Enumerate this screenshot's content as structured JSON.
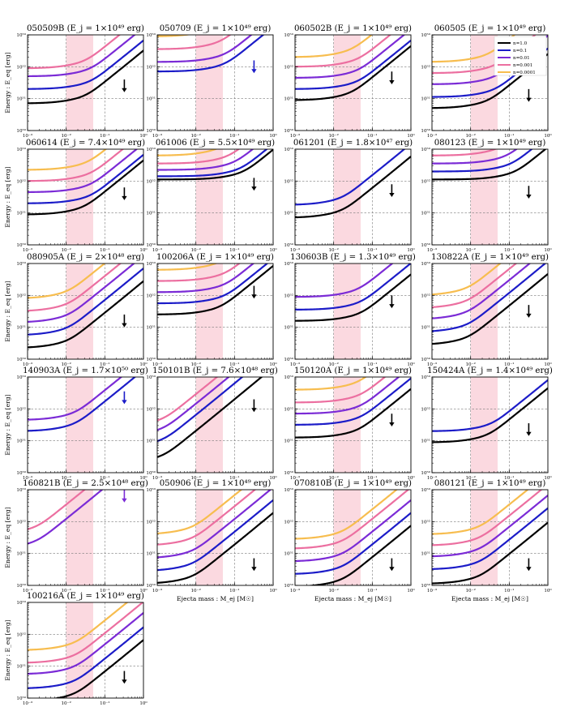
{
  "figure": {
    "xlabel": "Ejecta mass : M_ej [M☉]",
    "ylabel": "Energy : E_eq [erg]",
    "xlim_log10": [
      -3,
      0
    ],
    "ylim_log10": [
      50,
      53
    ],
    "x_ticks": [
      "10⁻³",
      "10⁻²",
      "10⁻¹",
      "10⁰"
    ],
    "y_ticks": [
      "10⁵⁰",
      "10⁵¹",
      "10⁵²",
      "10⁵³"
    ],
    "shaded_region_Msun": [
      0.01,
      0.05
    ],
    "shaded_color": "#fbd9e0",
    "grid": "dashed",
    "legend": {
      "location": "top-right of panel 060505",
      "entries": [
        {
          "label": "n=1.0",
          "color": "#000000"
        },
        {
          "label": "n=0.1",
          "color": "#1c1cc8"
        },
        {
          "label": "n=0.01",
          "color": "#7b2bd6"
        },
        {
          "label": "n=0.001",
          "color": "#ec6fa0"
        },
        {
          "label": "n=0.0001",
          "color": "#f7bd4f"
        }
      ]
    }
  },
  "chart_data": [
    {
      "type": "line",
      "title": "050509B (E_j = 1×10⁴⁹ erg)",
      "name": "050509B",
      "ej": "1×10⁴⁹",
      "show_ylabel": true,
      "show_xlabel": false,
      "arrow": {
        "color": "#000000",
        "x_Msun": 0.32,
        "from_log10E": 51.6,
        "to_log10E": 51.2
      },
      "series": [
        {
          "n": "1.0",
          "log10E_floor": 50.85,
          "knee_Msun": 0.022
        },
        {
          "n": "0.1",
          "log10E_floor": 51.3,
          "knee_Msun": 0.03
        },
        {
          "n": "0.01",
          "log10E_floor": 51.7,
          "knee_Msun": 0.03
        },
        {
          "n": "0.001",
          "log10E_floor": 51.95,
          "knee_Msun": 0.022
        }
      ]
    },
    {
      "type": "line",
      "title": "050709 (E_j = 1×10⁴⁹ erg)",
      "name": "050709",
      "ej": "1×10⁴⁹",
      "show_ylabel": false,
      "show_xlabel": false,
      "arrow": {
        "color": "#1c1cc8",
        "x_Msun": 0.32,
        "from_log10E": 52.2,
        "to_log10E": 51.8
      },
      "series": [
        {
          "n": "0.1",
          "log10E_floor": 51.85,
          "knee_Msun": 0.04
        },
        {
          "n": "0.01",
          "log10E_floor": 52.15,
          "knee_Msun": 0.04
        },
        {
          "n": "0.001",
          "log10E_floor": 52.55,
          "knee_Msun": 0.03
        },
        {
          "n": "0.0001",
          "log10E_floor": 52.95,
          "knee_Msun": 0.02
        }
      ]
    },
    {
      "type": "line",
      "title": "060502B (E_j = 1×10⁴⁹ erg)",
      "name": "060502B",
      "ej": "1×10⁴⁹",
      "show_ylabel": false,
      "show_xlabel": false,
      "arrow": {
        "color": "#000000",
        "x_Msun": 0.32,
        "from_log10E": 51.85,
        "to_log10E": 51.45
      },
      "series": [
        {
          "n": "1.0",
          "log10E_floor": 50.95,
          "knee_Msun": 0.02
        },
        {
          "n": "0.1",
          "log10E_floor": 51.3,
          "knee_Msun": 0.03
        },
        {
          "n": "0.01",
          "log10E_floor": 51.65,
          "knee_Msun": 0.03
        },
        {
          "n": "0.001",
          "log10E_floor": 52.0,
          "knee_Msun": 0.03
        },
        {
          "n": "0.0001",
          "log10E_floor": 52.3,
          "knee_Msun": 0.02
        }
      ]
    },
    {
      "type": "line",
      "title": "060505 (E_j = 1×10⁴⁹ erg)",
      "name": "060505",
      "ej": "1×10⁴⁹",
      "show_ylabel": false,
      "show_xlabel": false,
      "legend": true,
      "arrow": {
        "color": "#000000",
        "x_Msun": 0.32,
        "from_log10E": 51.3,
        "to_log10E": 50.9
      },
      "series": [
        {
          "n": "1.0",
          "log10E_floor": 50.7,
          "knee_Msun": 0.02
        },
        {
          "n": "0.1",
          "log10E_floor": 51.05,
          "knee_Msun": 0.03
        },
        {
          "n": "0.01",
          "log10E_floor": 51.45,
          "knee_Msun": 0.03
        },
        {
          "n": "0.001",
          "log10E_floor": 51.8,
          "knee_Msun": 0.03
        },
        {
          "n": "0.0001",
          "log10E_floor": 52.15,
          "knee_Msun": 0.02
        }
      ]
    },
    {
      "type": "line",
      "title": "060614 (E_j = 7.4×10⁴⁹ erg)",
      "name": "060614",
      "ej": "7.4×10⁴⁹",
      "show_ylabel": true,
      "show_xlabel": false,
      "arrow": {
        "color": "#000000",
        "x_Msun": 0.32,
        "from_log10E": 51.8,
        "to_log10E": 51.4
      },
      "series": [
        {
          "n": "1.0",
          "log10E_floor": 50.95,
          "knee_Msun": 0.02
        },
        {
          "n": "0.1",
          "log10E_floor": 51.3,
          "knee_Msun": 0.03
        },
        {
          "n": "0.01",
          "log10E_floor": 51.65,
          "knee_Msun": 0.03
        },
        {
          "n": "0.001",
          "log10E_floor": 52.0,
          "knee_Msun": 0.03
        },
        {
          "n": "0.0001",
          "log10E_floor": 52.35,
          "knee_Msun": 0.025
        }
      ]
    },
    {
      "type": "line",
      "title": "061006 (E_j = 5.5×10⁴⁹ erg)",
      "name": "061006",
      "ej": "5.5×10⁴⁹",
      "show_ylabel": false,
      "show_xlabel": false,
      "arrow": {
        "color": "#000000",
        "x_Msun": 0.32,
        "from_log10E": 52.1,
        "to_log10E": 51.7
      },
      "series": [
        {
          "n": "1.0",
          "log10E_floor": 52.05,
          "knee_Msun": 0.12
        },
        {
          "n": "0.1",
          "log10E_floor": 52.15,
          "knee_Msun": 0.1
        },
        {
          "n": "0.01",
          "log10E_floor": 52.35,
          "knee_Msun": 0.07
        },
        {
          "n": "0.001",
          "log10E_floor": 52.55,
          "knee_Msun": 0.05
        },
        {
          "n": "0.0001",
          "log10E_floor": 52.8,
          "knee_Msun": 0.03
        }
      ]
    },
    {
      "type": "line",
      "title": "061201 (E_j = 1.8×10⁴⁷ erg)",
      "name": "061201",
      "ej": "1.8×10⁴⁷",
      "show_ylabel": false,
      "show_xlabel": false,
      "arrow": {
        "color": "#000000",
        "x_Msun": 0.32,
        "from_log10E": 51.9,
        "to_log10E": 51.5
      },
      "series": [
        {
          "n": "1.0",
          "log10E_floor": 50.85,
          "knee_Msun": 0.012
        },
        {
          "n": "0.1",
          "log10E_floor": 51.25,
          "knee_Msun": 0.012
        }
      ]
    },
    {
      "type": "line",
      "title": "080123 (E_j = 1×10⁴⁹ erg)",
      "name": "080123",
      "ej": "1×10⁴⁹",
      "show_ylabel": false,
      "show_xlabel": false,
      "arrow": {
        "color": "#000000",
        "x_Msun": 0.32,
        "from_log10E": 51.85,
        "to_log10E": 51.45
      },
      "series": [
        {
          "n": "1.0",
          "log10E_floor": 52.05,
          "knee_Msun": 0.1
        },
        {
          "n": "0.1",
          "log10E_floor": 52.3,
          "knee_Msun": 0.08
        },
        {
          "n": "0.01",
          "log10E_floor": 52.55,
          "knee_Msun": 0.06
        },
        {
          "n": "0.001",
          "log10E_floor": 52.8,
          "knee_Msun": 0.04
        },
        {
          "n": "0.0001",
          "log10E_floor": 53.05,
          "knee_Msun": 0.03
        }
      ]
    },
    {
      "type": "line",
      "title": "080905A (E_j = 2×10⁴⁸ erg)",
      "name": "080905A",
      "ej": "2×10⁴⁸",
      "show_ylabel": true,
      "show_xlabel": false,
      "arrow": {
        "color": "#000000",
        "x_Msun": 0.32,
        "from_log10E": 51.4,
        "to_log10E": 51.0
      },
      "series": [
        {
          "n": "1.0",
          "log10E_floor": 50.35,
          "knee_Msun": 0.008
        },
        {
          "n": "0.1",
          "log10E_floor": 50.75,
          "knee_Msun": 0.008
        },
        {
          "n": "0.01",
          "log10E_floor": 51.15,
          "knee_Msun": 0.008
        },
        {
          "n": "0.001",
          "log10E_floor": 51.5,
          "knee_Msun": 0.008
        },
        {
          "n": "0.0001",
          "log10E_floor": 51.9,
          "knee_Msun": 0.008
        }
      ]
    },
    {
      "type": "line",
      "title": "100206A (E_j = 1×10⁴⁹ erg)",
      "name": "100206A",
      "ej": "1×10⁴⁹",
      "show_ylabel": false,
      "show_xlabel": false,
      "arrow": {
        "color": "#000000",
        "x_Msun": 0.32,
        "from_log10E": 52.3,
        "to_log10E": 51.9
      },
      "series": [
        {
          "n": "1.0",
          "log10E_floor": 51.4,
          "knee_Msun": 0.03
        },
        {
          "n": "0.1",
          "log10E_floor": 51.75,
          "knee_Msun": 0.04
        },
        {
          "n": "0.01",
          "log10E_floor": 52.1,
          "knee_Msun": 0.04
        },
        {
          "n": "0.001",
          "log10E_floor": 52.45,
          "knee_Msun": 0.04
        },
        {
          "n": "0.0001",
          "log10E_floor": 52.8,
          "knee_Msun": 0.03
        }
      ]
    },
    {
      "type": "line",
      "title": "130603B (E_j = 1.3×10⁴⁹ erg)",
      "name": "130603B",
      "ej": "1.3×10⁴⁹",
      "show_ylabel": false,
      "show_xlabel": false,
      "arrow": {
        "color": "#000000",
        "x_Msun": 0.32,
        "from_log10E": 52.0,
        "to_log10E": 51.6
      },
      "series": [
        {
          "n": "1.0",
          "log10E_floor": 51.2,
          "knee_Msun": 0.035
        },
        {
          "n": "0.1",
          "log10E_floor": 51.55,
          "knee_Msun": 0.035
        },
        {
          "n": "0.01",
          "log10E_floor": 51.95,
          "knee_Msun": 0.03
        }
      ]
    },
    {
      "type": "line",
      "title": "130822A (E_j = 1×10⁴⁹ erg)",
      "name": "130822A",
      "ej": "1×10⁴⁹",
      "show_ylabel": false,
      "show_xlabel": false,
      "arrow": {
        "color": "#000000",
        "x_Msun": 0.32,
        "from_log10E": 51.7,
        "to_log10E": 51.3
      },
      "series": [
        {
          "n": "1.0",
          "log10E_floor": 50.45,
          "knee_Msun": 0.006
        },
        {
          "n": "0.1",
          "log10E_floor": 50.85,
          "knee_Msun": 0.006
        },
        {
          "n": "0.01",
          "log10E_floor": 51.25,
          "knee_Msun": 0.006
        },
        {
          "n": "0.001",
          "log10E_floor": 51.6,
          "knee_Msun": 0.006
        },
        {
          "n": "0.0001",
          "log10E_floor": 52.0,
          "knee_Msun": 0.006
        }
      ]
    },
    {
      "type": "line",
      "title": "140903A (E_j = 1.7×10⁵⁰ erg)",
      "name": "140903A",
      "ej": "1.7×10⁵⁰",
      "show_ylabel": true,
      "show_xlabel": false,
      "arrow": {
        "color": "#1c1cc8",
        "x_Msun": 0.32,
        "from_log10E": 52.55,
        "to_log10E": 52.15
      },
      "series": [
        {
          "n": "0.1",
          "log10E_floor": 51.3,
          "knee_Msun": 0.012
        },
        {
          "n": "0.01",
          "log10E_floor": 51.65,
          "knee_Msun": 0.012
        }
      ]
    },
    {
      "type": "line",
      "title": "150101B (E_j = 7.6×10⁴⁸ erg)",
      "name": "150101B",
      "ej": "7.6×10⁴⁸",
      "show_ylabel": false,
      "show_xlabel": false,
      "arrow": {
        "color": "#000000",
        "x_Msun": 0.32,
        "from_log10E": 52.3,
        "to_log10E": 51.9
      },
      "series": [
        {
          "n": "1.0",
          "log10E_floor": 50.3,
          "knee_Msun": 0.001
        },
        {
          "n": "0.1",
          "log10E_floor": 50.8,
          "knee_Msun": 0.001
        },
        {
          "n": "0.01",
          "log10E_floor": 51.15,
          "knee_Msun": 0.001
        },
        {
          "n": "0.001",
          "log10E_floor": 51.45,
          "knee_Msun": 0.001
        }
      ]
    },
    {
      "type": "line",
      "title": "150120A (E_j = 1×10⁴⁹ erg)",
      "name": "150120A",
      "ej": "1×10⁴⁹",
      "show_ylabel": false,
      "show_xlabel": false,
      "arrow": {
        "color": "#000000",
        "x_Msun": 0.32,
        "from_log10E": 51.85,
        "to_log10E": 51.45
      },
      "series": [
        {
          "n": "1.0",
          "log10E_floor": 51.1,
          "knee_Msun": 0.03
        },
        {
          "n": "0.1",
          "log10E_floor": 51.5,
          "knee_Msun": 0.035
        },
        {
          "n": "0.01",
          "log10E_floor": 51.85,
          "knee_Msun": 0.035
        },
        {
          "n": "0.001",
          "log10E_floor": 52.2,
          "knee_Msun": 0.035
        },
        {
          "n": "0.0001",
          "log10E_floor": 52.6,
          "knee_Msun": 0.03
        }
      ]
    },
    {
      "type": "line",
      "title": "150424A (E_j = 1.4×10⁴⁹ erg)",
      "name": "150424A",
      "ej": "1.4×10⁴⁹",
      "show_ylabel": false,
      "show_xlabel": false,
      "arrow": {
        "color": "#000000",
        "x_Msun": 0.32,
        "from_log10E": 51.55,
        "to_log10E": 51.15
      },
      "series": [
        {
          "n": "1.0",
          "log10E_floor": 50.95,
          "knee_Msun": 0.02
        },
        {
          "n": "0.1",
          "log10E_floor": 51.3,
          "knee_Msun": 0.025
        }
      ]
    },
    {
      "type": "line",
      "title": "160821B (E_j = 2.5×10⁴⁸ erg)",
      "name": "160821B",
      "ej": "2.5×10⁴⁸",
      "show_ylabel": true,
      "show_xlabel": false,
      "arrow": {
        "color": "#7b2bd6",
        "x_Msun": 0.32,
        "from_log10E": 53.0,
        "to_log10E": 52.6
      },
      "series": [
        {
          "n": "0.01",
          "log10E_floor": 51.15,
          "knee_Msun": 0.0012
        },
        {
          "n": "0.001",
          "log10E_floor": 51.6,
          "knee_Msun": 0.0012
        }
      ]
    },
    {
      "type": "line",
      "title": "050906 (E_j = 1×10⁴⁹ erg)",
      "name": "050906",
      "ej": "1×10⁴⁹",
      "show_ylabel": false,
      "show_xlabel": true,
      "arrow": {
        "color": "#000000",
        "x_Msun": 0.32,
        "from_log10E": 50.85,
        "to_log10E": 50.45
      },
      "series": [
        {
          "n": "1.0",
          "log10E_floor": 50.05,
          "knee_Msun": 0.006
        },
        {
          "n": "0.1",
          "log10E_floor": 50.45,
          "knee_Msun": 0.006
        },
        {
          "n": "0.01",
          "log10E_floor": 50.85,
          "knee_Msun": 0.006
        },
        {
          "n": "0.001",
          "log10E_floor": 51.25,
          "knee_Msun": 0.006
        },
        {
          "n": "0.0001",
          "log10E_floor": 51.6,
          "knee_Msun": 0.006
        }
      ]
    },
    {
      "type": "line",
      "title": "070810B (E_j = 1×10⁴⁹ erg)",
      "name": "070810B",
      "ej": "1×10⁴⁹",
      "show_ylabel": false,
      "show_xlabel": true,
      "arrow": {
        "color": "#000000",
        "x_Msun": 0.32,
        "from_log10E": 50.85,
        "to_log10E": 50.45
      },
      "series": [
        {
          "n": "1.0",
          "log10E_floor": 49.95,
          "knee_Msun": 0.012
        },
        {
          "n": "0.1",
          "log10E_floor": 50.35,
          "knee_Msun": 0.012
        },
        {
          "n": "0.01",
          "log10E_floor": 50.75,
          "knee_Msun": 0.012
        },
        {
          "n": "0.001",
          "log10E_floor": 51.15,
          "knee_Msun": 0.012
        },
        {
          "n": "0.0001",
          "log10E_floor": 51.45,
          "knee_Msun": 0.012
        }
      ]
    },
    {
      "type": "line",
      "title": "080121 (E_j = 1×10⁴⁹ erg)",
      "name": "080121",
      "ej": "1×10⁴⁹",
      "show_ylabel": false,
      "show_xlabel": true,
      "arrow": {
        "color": "#000000",
        "x_Msun": 0.32,
        "from_log10E": 50.85,
        "to_log10E": 50.45
      },
      "series": [
        {
          "n": "1.0",
          "log10E_floor": 50.05,
          "knee_Msun": 0.012
        },
        {
          "n": "0.1",
          "log10E_floor": 50.5,
          "knee_Msun": 0.012
        },
        {
          "n": "0.01",
          "log10E_floor": 50.9,
          "knee_Msun": 0.012
        },
        {
          "n": "0.001",
          "log10E_floor": 51.25,
          "knee_Msun": 0.012
        },
        {
          "n": "0.0001",
          "log10E_floor": 51.6,
          "knee_Msun": 0.012
        }
      ]
    },
    {
      "type": "line",
      "title": "100216A (E_j = 1×10⁴⁹ erg)",
      "name": "100216A",
      "ej": "1×10⁴⁹",
      "show_ylabel": true,
      "show_xlabel": true,
      "arrow": {
        "color": "#000000",
        "x_Msun": 0.32,
        "from_log10E": 50.85,
        "to_log10E": 50.45
      },
      "series": [
        {
          "n": "1.0",
          "log10E_floor": 49.9,
          "knee_Msun": 0.012
        },
        {
          "n": "0.1",
          "log10E_floor": 50.3,
          "knee_Msun": 0.012
        },
        {
          "n": "0.01",
          "log10E_floor": 50.75,
          "knee_Msun": 0.012
        },
        {
          "n": "0.001",
          "log10E_floor": 51.1,
          "knee_Msun": 0.012
        },
        {
          "n": "0.0001",
          "log10E_floor": 51.5,
          "knee_Msun": 0.012
        }
      ]
    }
  ]
}
